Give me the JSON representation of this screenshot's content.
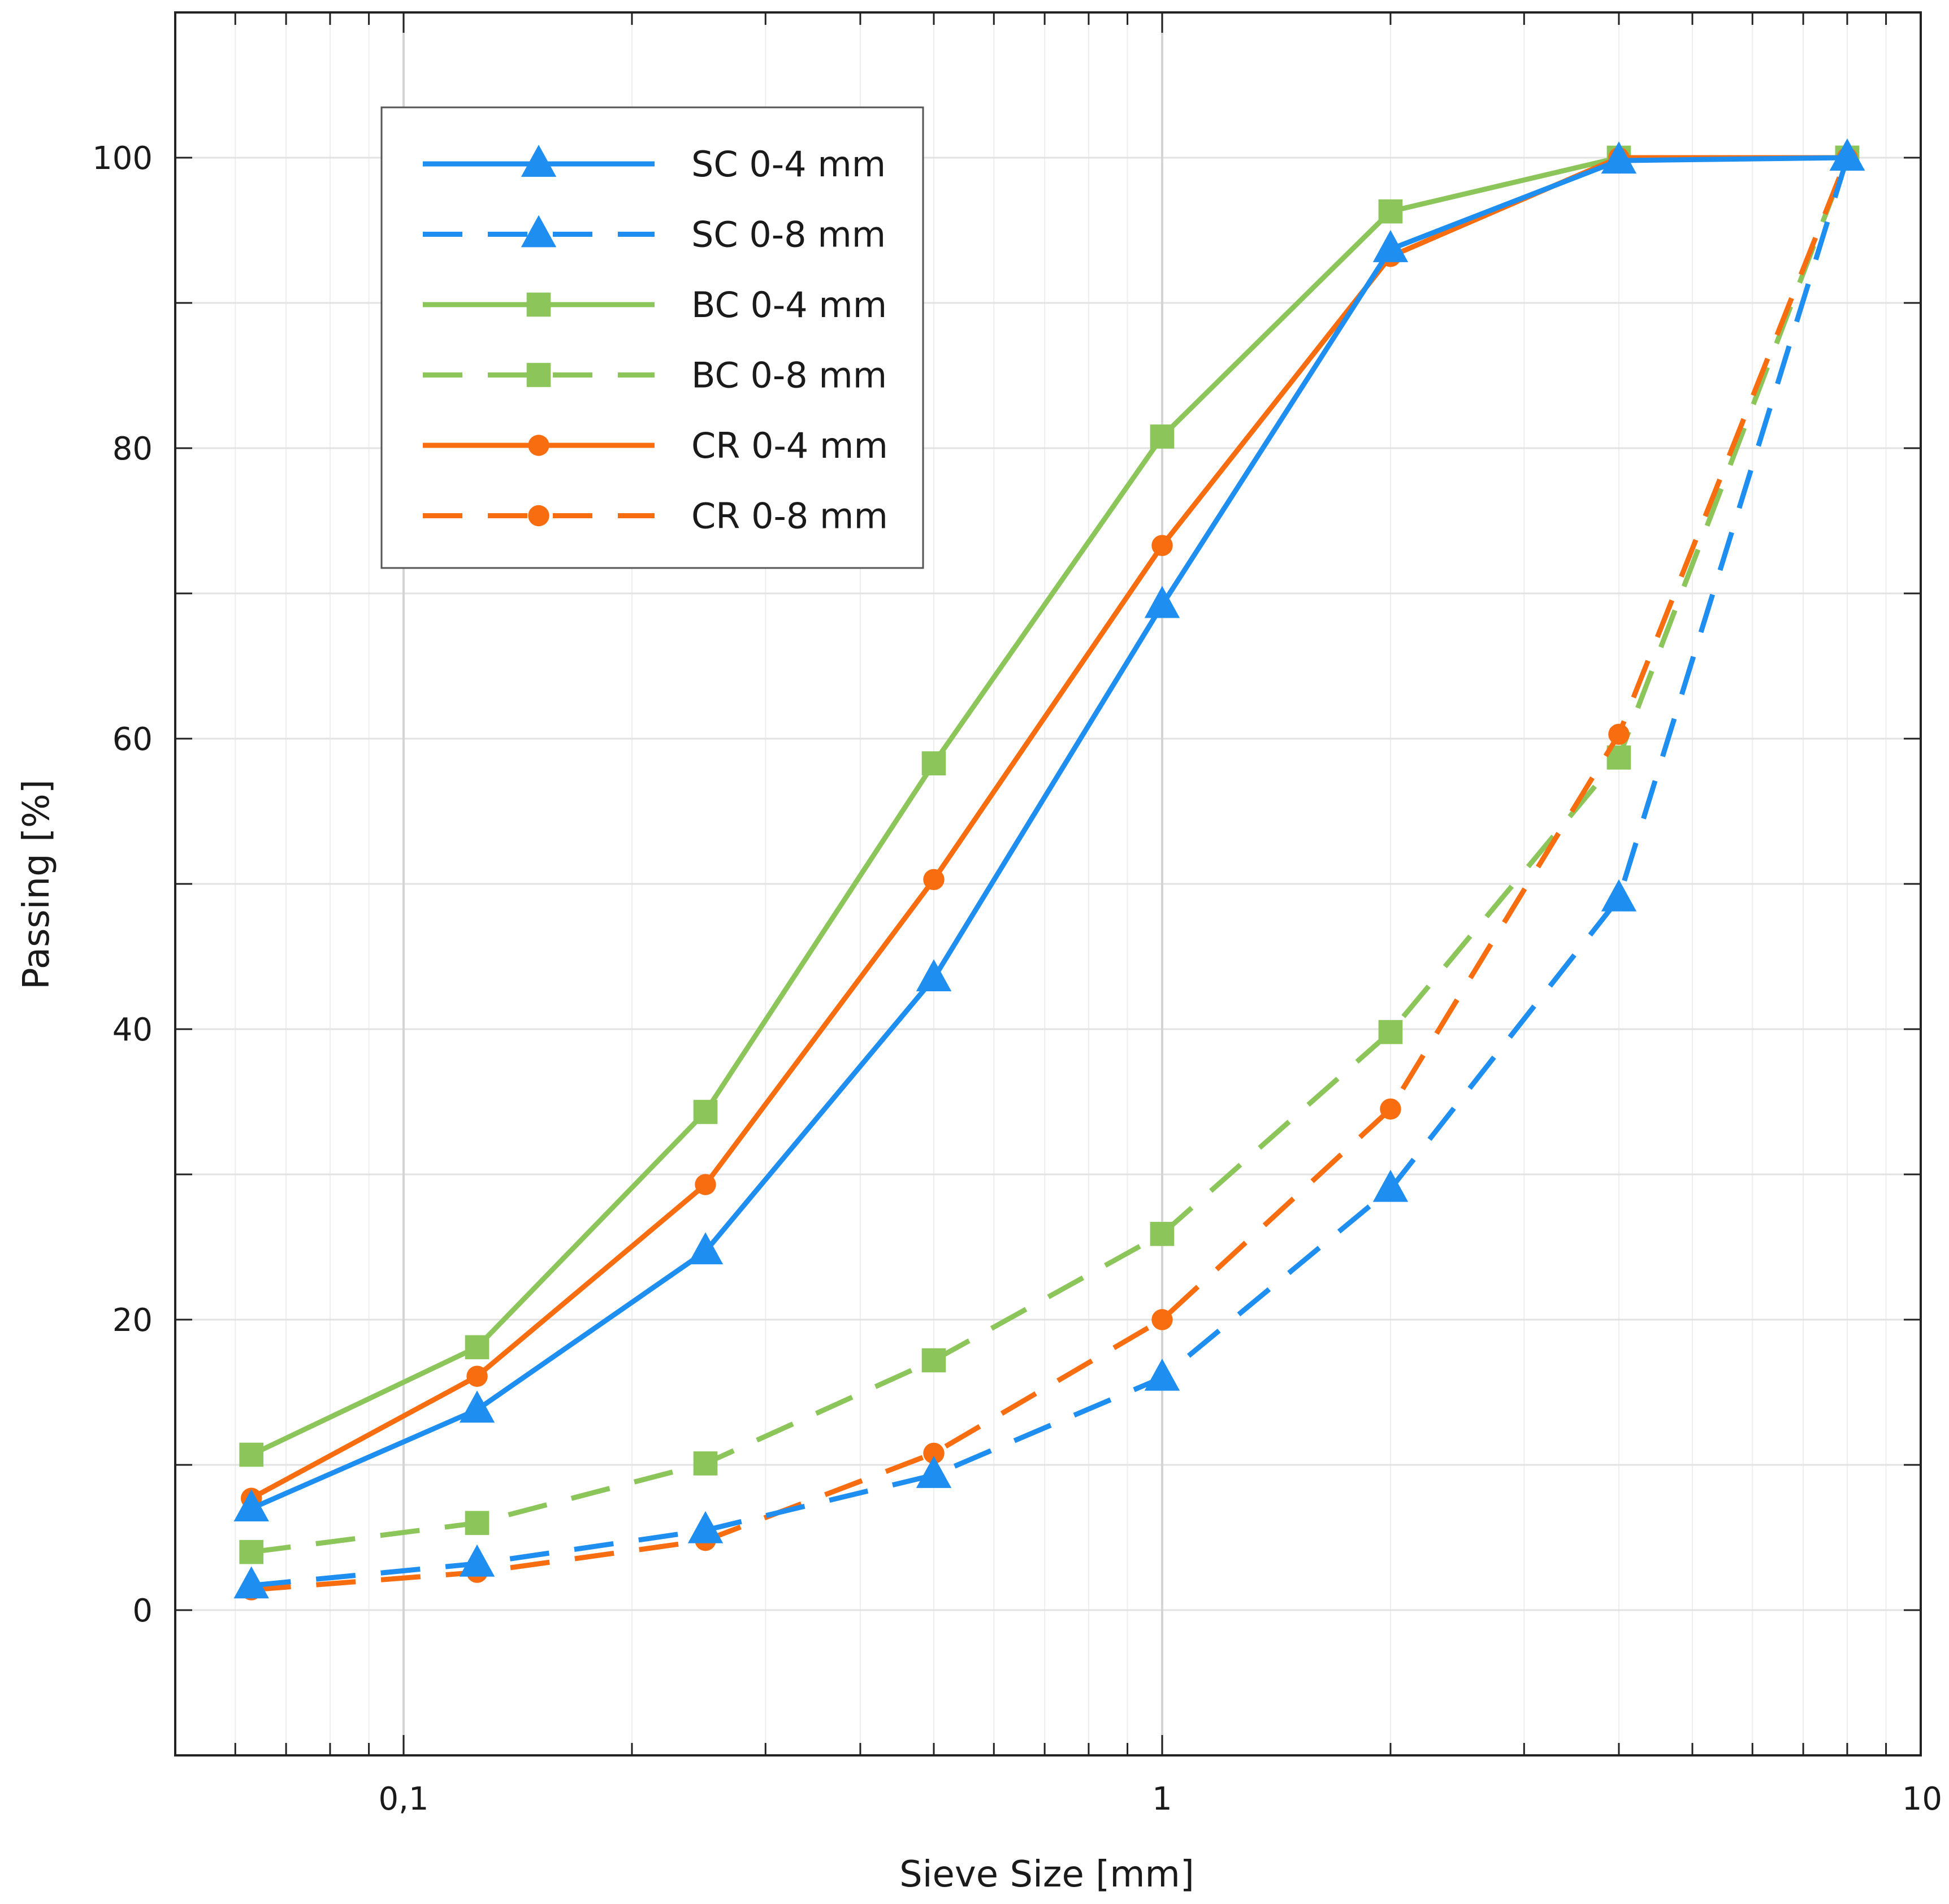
{
  "chart_data": {
    "type": "line",
    "title": "",
    "xlabel": "Sieve Size [mm]",
    "ylabel": "Passing [%]",
    "xscale": "log",
    "xlim": [
      0.05,
      10
    ],
    "ylim": [
      -10,
      110
    ],
    "grid": true,
    "legend_position": "top-left",
    "x_ticks": [
      {
        "value": 0.1,
        "label": "0,1"
      },
      {
        "value": 1,
        "label": "1"
      },
      {
        "value": 10,
        "label": "10"
      }
    ],
    "y_ticks": [
      {
        "value": 0,
        "label": "0"
      },
      {
        "value": 20,
        "label": "20"
      },
      {
        "value": 40,
        "label": "40"
      },
      {
        "value": 60,
        "label": "60"
      },
      {
        "value": 80,
        "label": "80"
      },
      {
        "value": 100,
        "label": "100"
      }
    ],
    "x": [
      0.063,
      0.125,
      0.25,
      0.5,
      1,
      2,
      4,
      8
    ],
    "series": [
      {
        "name": "SC 0-4 mm",
        "color": "#1f8ef1",
        "dash": "solid",
        "marker": "triangle",
        "values": [
          7.0,
          13.8,
          24.7,
          43.5,
          69.2,
          93.7,
          99.8,
          100.0
        ]
      },
      {
        "name": "SC 0-8 mm",
        "color": "#1f8ef1",
        "dash": "dashed",
        "marker": "triangle",
        "values": [
          1.7,
          3.2,
          5.5,
          9.3,
          16.0,
          29.0,
          49.0,
          100.0
        ]
      },
      {
        "name": "BC 0-4 mm",
        "color": "#8cc65a",
        "dash": "solid",
        "marker": "square",
        "values": [
          10.7,
          18.1,
          34.3,
          58.3,
          80.8,
          96.3,
          100.0,
          100.0
        ]
      },
      {
        "name": "BC 0-8 mm",
        "color": "#8cc65a",
        "dash": "dashed",
        "marker": "square",
        "values": [
          4.0,
          6.0,
          10.1,
          17.2,
          25.9,
          39.8,
          58.7,
          100.0
        ]
      },
      {
        "name": "CR 0-4 mm",
        "color": "#f86d10",
        "dash": "solid",
        "marker": "circle",
        "values": [
          7.7,
          16.1,
          29.3,
          50.3,
          73.3,
          93.2,
          100.0,
          100.0
        ]
      },
      {
        "name": "CR 0-8 mm",
        "color": "#f86d10",
        "dash": "dashed",
        "marker": "circle",
        "values": [
          1.4,
          2.6,
          4.8,
          10.8,
          20.0,
          34.5,
          60.3,
          100.0
        ]
      }
    ]
  }
}
